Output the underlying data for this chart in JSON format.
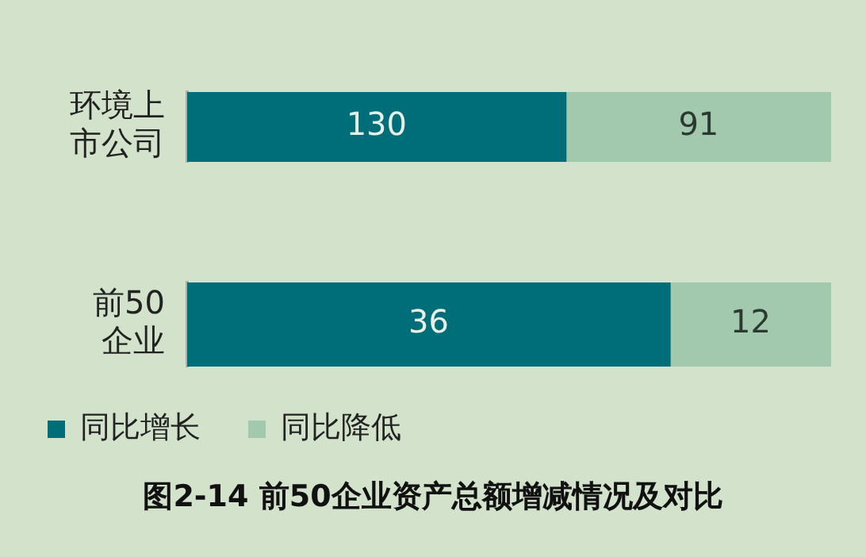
{
  "chart_data": [
    {
      "type": "bar",
      "orientation": "horizontal",
      "stacked": true,
      "categories": [
        "环境上市公司"
      ],
      "xlim": [
        0,
        221
      ],
      "tick_labels": "y",
      "data_labels": true,
      "series": [
        {
          "color": "#006e78",
          "values": [
            130
          ]
        },
        {
          "color": "#a2c8ad",
          "values": [
            91
          ]
        }
      ]
    },
    {
      "type": "bar",
      "orientation": "horizontal",
      "stacked": true,
      "title": "图2-14 前50企业资产总额增减情况及对比",
      "categories": [
        "前50企业"
      ],
      "xlim": [
        0,
        48
      ],
      "tick_labels": "y",
      "data_labels": true,
      "series": [
        {
          "name": "同比增长",
          "color": "#006e78",
          "values": [
            36
          ]
        },
        {
          "name": "同比降低",
          "color": "#a2c8ad",
          "values": [
            12
          ]
        }
      ],
      "legend": "bottom"
    }
  ]
}
